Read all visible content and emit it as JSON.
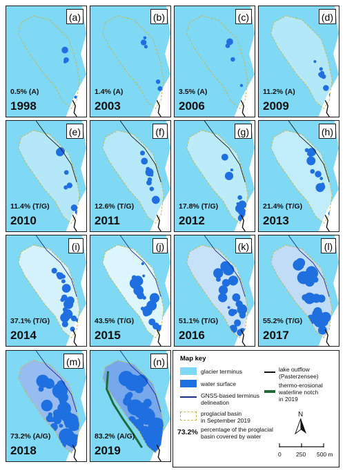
{
  "panels": [
    {
      "label": "(a)",
      "pct": "0.5% (A)",
      "year": "1998",
      "water": 0.005
    },
    {
      "label": "(b)",
      "pct": "1.4% (A)",
      "year": "2003",
      "water": 0.014
    },
    {
      "label": "(c)",
      "pct": "3.5% (A)",
      "year": "2006",
      "water": 0.035
    },
    {
      "label": "(d)",
      "pct": "11.2% (A)",
      "year": "2009",
      "water": 0.112
    },
    {
      "label": "(e)",
      "pct": "11.4% (T/G)",
      "year": "2010",
      "water": 0.114
    },
    {
      "label": "(f)",
      "pct": "12.6% (T/G)",
      "year": "2011",
      "water": 0.126
    },
    {
      "label": "(g)",
      "pct": "17.8% (T/G)",
      "year": "2012",
      "water": 0.178
    },
    {
      "label": "(h)",
      "pct": "21.4% (T/G)",
      "year": "2013",
      "water": 0.214
    },
    {
      "label": "(i)",
      "pct": "37.1% (T/G)",
      "year": "2014",
      "water": 0.371
    },
    {
      "label": "(j)",
      "pct": "43.5% (T/G)",
      "year": "2015",
      "water": 0.435
    },
    {
      "label": "(k)",
      "pct": "51.1% (T/G)",
      "year": "2016",
      "water": 0.511
    },
    {
      "label": "(l)",
      "pct": "55.2% (T/G)",
      "year": "2017",
      "water": 0.552
    },
    {
      "label": "(m)",
      "pct": "73.2% (A/G)",
      "year": "2018",
      "water": 0.732
    },
    {
      "label": "(n)",
      "pct": "83.2% (A/G)",
      "year": "2019",
      "water": 0.832
    }
  ],
  "legend": {
    "title": "Map key",
    "glacier": "glacier terminus",
    "water": "water surface",
    "gnss_1": "GNSS-based terminus",
    "gnss_2": "delineation",
    "basin_1": "proglacial basin",
    "basin_2": "in September 2019",
    "pct_example": "73.2%",
    "pct_1": "percentage of the proglacial",
    "pct_2": "basin covered by water",
    "outflow_1": "lake outflow",
    "outflow_2": "(Pasterzensee)",
    "notch_1": "thermo-erosional",
    "notch_2": "waterline notch",
    "notch_3": "in 2019",
    "north": "N",
    "scale_0": "0",
    "scale_1": "250",
    "scale_2": "500 m"
  },
  "colors": {
    "glacier": "#7fd8f4",
    "water": "#1f6fe0",
    "basin": "#c9b54a",
    "outflow": "#111111",
    "notch": "#1d6b3a",
    "gnss": "#1a2a8a"
  }
}
